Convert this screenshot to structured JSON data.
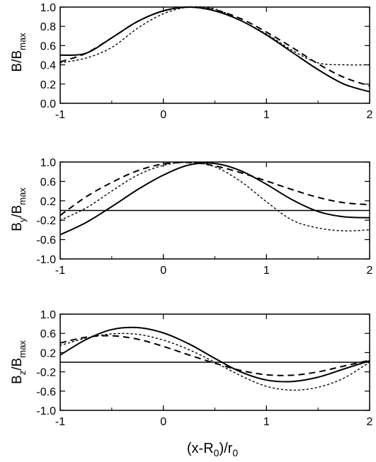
{
  "chart_data": [
    {
      "type": "line",
      "ylabel": "B/B_max",
      "xlim": [
        -1,
        2
      ],
      "ylim": [
        0,
        1
      ],
      "x_ticks": [
        -1,
        0,
        1,
        2
      ],
      "y_ticks": [
        0.0,
        0.2,
        0.4,
        0.6,
        0.8,
        1.0
      ],
      "x": [
        -1,
        -0.75,
        -0.5,
        -0.25,
        0,
        0.25,
        0.5,
        0.75,
        1,
        1.25,
        1.5,
        1.75,
        2
      ],
      "series": [
        {
          "style": "solid",
          "values": [
            0.5,
            0.52,
            0.68,
            0.85,
            0.96,
            1.0,
            0.96,
            0.86,
            0.71,
            0.53,
            0.35,
            0.2,
            0.12
          ]
        },
        {
          "style": "dashed",
          "values": [
            0.43,
            0.52,
            0.68,
            0.85,
            0.96,
            1.0,
            0.97,
            0.88,
            0.74,
            0.58,
            0.41,
            0.27,
            0.18
          ]
        },
        {
          "style": "dotted",
          "values": [
            0.42,
            0.47,
            0.58,
            0.78,
            0.93,
            1.0,
            0.98,
            0.86,
            0.72,
            0.55,
            0.42,
            0.4,
            0.4
          ]
        }
      ],
      "zero_line": false
    },
    {
      "type": "line",
      "ylabel": "B_y/B_max",
      "xlim": [
        -1,
        2
      ],
      "ylim": [
        -1,
        1
      ],
      "x_ticks": [
        -1,
        0,
        1,
        2
      ],
      "y_ticks": [
        -1.0,
        -0.6,
        -0.2,
        0.2,
        0.6,
        1.0
      ],
      "x": [
        -1,
        -0.75,
        -0.5,
        -0.25,
        0,
        0.25,
        0.5,
        0.75,
        1,
        1.25,
        1.5,
        1.75,
        2
      ],
      "series": [
        {
          "style": "solid",
          "values": [
            -0.5,
            -0.25,
            0.08,
            0.43,
            0.73,
            0.94,
            0.97,
            0.82,
            0.54,
            0.22,
            -0.02,
            -0.13,
            -0.15
          ]
        },
        {
          "style": "dashed",
          "values": [
            -0.1,
            0.28,
            0.58,
            0.82,
            0.96,
            0.99,
            0.92,
            0.78,
            0.61,
            0.43,
            0.27,
            0.16,
            0.12
          ]
        },
        {
          "style": "dotted",
          "values": [
            -0.2,
            0.05,
            0.4,
            0.73,
            0.93,
            0.99,
            0.9,
            0.6,
            0.18,
            -0.2,
            -0.36,
            -0.42,
            -0.4
          ]
        }
      ],
      "zero_line": true
    },
    {
      "type": "line",
      "ylabel": "B_z/B_max",
      "xlim": [
        -1,
        2
      ],
      "ylim": [
        -1,
        1
      ],
      "x_ticks": [
        -1,
        0,
        1,
        2
      ],
      "y_ticks": [
        -1.0,
        -0.6,
        -0.2,
        0.2,
        0.6,
        1.0
      ],
      "x": [
        -1,
        -0.75,
        -0.5,
        -0.25,
        0,
        0.25,
        0.5,
        0.75,
        1,
        1.25,
        1.5,
        1.75,
        2
      ],
      "series": [
        {
          "style": "solid",
          "values": [
            0.15,
            0.47,
            0.68,
            0.72,
            0.61,
            0.38,
            0.08,
            -0.2,
            -0.37,
            -0.4,
            -0.31,
            -0.14,
            0.03
          ]
        },
        {
          "style": "dashed",
          "values": [
            0.4,
            0.52,
            0.55,
            0.48,
            0.33,
            0.15,
            -0.02,
            -0.17,
            -0.26,
            -0.27,
            -0.2,
            -0.08,
            0.04
          ]
        },
        {
          "style": "dotted",
          "values": [
            0.35,
            0.5,
            0.59,
            0.58,
            0.46,
            0.26,
            0.0,
            -0.28,
            -0.5,
            -0.58,
            -0.52,
            -0.33,
            0.0
          ]
        }
      ],
      "zero_line": true
    }
  ],
  "xlabel": "(x-R0)/r0",
  "labels": {
    "p1_main": "B/B",
    "p1_sub": "max",
    "p2_main": "B",
    "p2_sub1": "y",
    "p2_mid": "/B",
    "p2_sub2": "max",
    "p3_main": "B",
    "p3_sub1": "z",
    "p3_mid": "/B",
    "p3_sub2": "max",
    "x_a": "(x-R",
    "x_b": "0",
    "x_c": ")/r",
    "x_d": "0"
  }
}
